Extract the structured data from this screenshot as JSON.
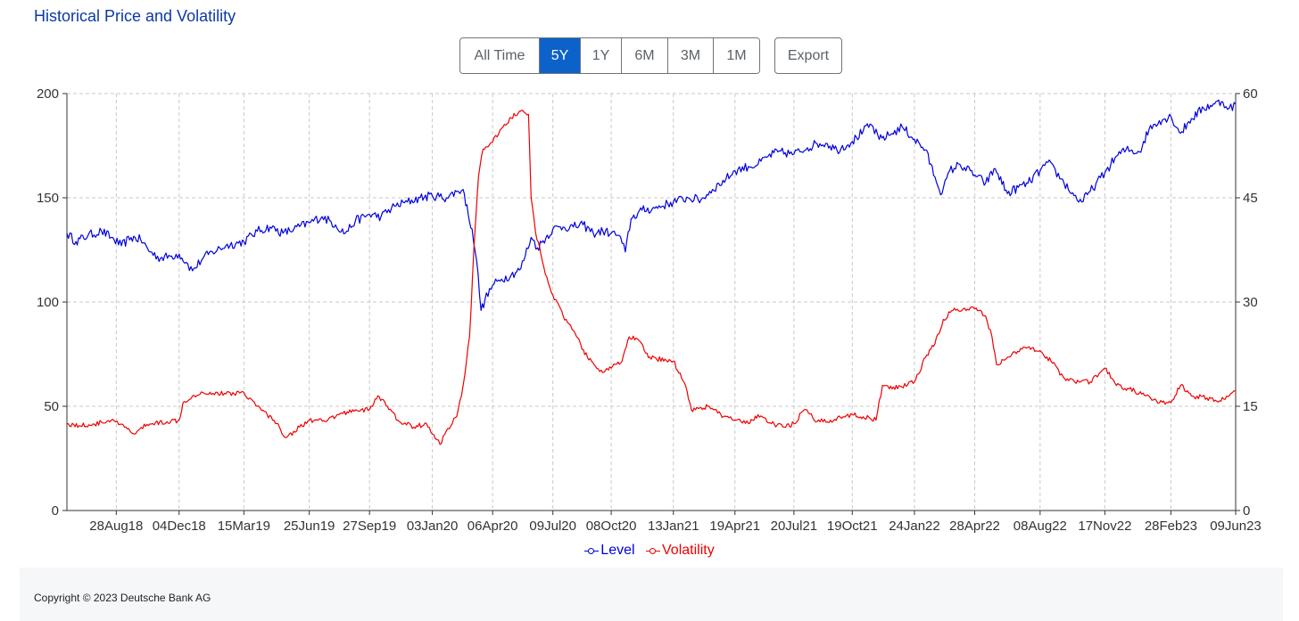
{
  "title": "Historical Price and Volatility",
  "range_buttons": [
    "All Time",
    "5Y",
    "1Y",
    "6M",
    "3M",
    "1M"
  ],
  "range_selected": "5Y",
  "export_label": "Export",
  "footer": {
    "copyright": "Copyright © 2023 Deutsche Bank AG"
  },
  "legend": [
    {
      "label": "Level",
      "color": "#0000dd"
    },
    {
      "label": "Volatility",
      "color": "#ee0000"
    }
  ],
  "chart_data": {
    "type": "line",
    "x_tick_labels": [
      "28Aug18",
      "04Dec18",
      "15Mar19",
      "25Jun19",
      "27Sep19",
      "03Jan20",
      "06Apr20",
      "09Jul20",
      "08Oct20",
      "13Jan21",
      "19Apr21",
      "20Jul21",
      "19Oct21",
      "24Jan22",
      "28Apr22",
      "08Aug22",
      "17Nov22",
      "28Feb23",
      "09Jun23"
    ],
    "x_range": [
      "2018-06-12",
      "2023-06-09"
    ],
    "y_left": {
      "ticks": [
        0,
        50,
        100,
        150,
        200
      ],
      "range": [
        0,
        200
      ]
    },
    "y_right": {
      "ticks": [
        0,
        15,
        30,
        45,
        60
      ],
      "range": [
        0,
        60
      ]
    },
    "grid": true,
    "series": [
      {
        "name": "Level",
        "axis": "left",
        "color": "#0000dd",
        "points": [
          [
            "2018-06-12",
            133
          ],
          [
            "2018-06-26",
            129
          ],
          [
            "2018-07-15",
            132
          ],
          [
            "2018-08-05",
            134
          ],
          [
            "2018-08-20",
            131
          ],
          [
            "2018-09-05",
            127
          ],
          [
            "2018-09-20",
            131
          ],
          [
            "2018-10-05",
            130
          ],
          [
            "2018-10-20",
            124
          ],
          [
            "2018-11-05",
            121
          ],
          [
            "2018-11-20",
            122
          ],
          [
            "2018-12-04",
            123
          ],
          [
            "2018-12-15",
            119
          ],
          [
            "2018-12-25",
            115
          ],
          [
            "2019-01-10",
            121
          ],
          [
            "2019-01-25",
            124
          ],
          [
            "2019-02-15",
            127
          ],
          [
            "2019-03-15",
            129
          ],
          [
            "2019-04-05",
            134
          ],
          [
            "2019-04-25",
            136
          ],
          [
            "2019-05-15",
            133
          ],
          [
            "2019-06-01",
            135
          ],
          [
            "2019-06-25",
            138
          ],
          [
            "2019-07-15",
            141
          ],
          [
            "2019-08-05",
            137
          ],
          [
            "2019-08-20",
            133
          ],
          [
            "2019-09-05",
            139
          ],
          [
            "2019-09-27",
            142
          ],
          [
            "2019-10-15",
            141
          ],
          [
            "2019-11-05",
            146
          ],
          [
            "2019-11-25",
            148
          ],
          [
            "2019-12-15",
            150
          ],
          [
            "2020-01-03",
            151
          ],
          [
            "2020-01-25",
            150
          ],
          [
            "2020-02-10",
            153
          ],
          [
            "2020-02-20",
            154
          ],
          [
            "2020-02-28",
            142
          ],
          [
            "2020-03-05",
            135
          ],
          [
            "2020-03-12",
            120
          ],
          [
            "2020-03-19",
            96
          ],
          [
            "2020-03-25",
            101
          ],
          [
            "2020-04-06",
            108
          ],
          [
            "2020-04-20",
            111
          ],
          [
            "2020-05-05",
            113
          ],
          [
            "2020-05-20",
            116
          ],
          [
            "2020-06-05",
            131
          ],
          [
            "2020-06-15",
            126
          ],
          [
            "2020-07-09",
            135
          ],
          [
            "2020-07-25",
            136
          ],
          [
            "2020-08-10",
            136
          ],
          [
            "2020-08-25",
            137
          ],
          [
            "2020-09-10",
            133
          ],
          [
            "2020-09-25",
            134
          ],
          [
            "2020-10-08",
            133
          ],
          [
            "2020-10-20",
            132
          ],
          [
            "2020-10-30",
            124
          ],
          [
            "2020-11-08",
            140
          ],
          [
            "2020-11-25",
            144
          ],
          [
            "2020-12-15",
            145
          ],
          [
            "2021-01-13",
            148
          ],
          [
            "2021-02-05",
            150
          ],
          [
            "2021-02-25",
            149
          ],
          [
            "2021-03-15",
            154
          ],
          [
            "2021-04-05",
            159
          ],
          [
            "2021-04-19",
            163
          ],
          [
            "2021-05-10",
            165
          ],
          [
            "2021-05-25",
            166
          ],
          [
            "2021-06-10",
            170
          ],
          [
            "2021-06-25",
            172
          ],
          [
            "2021-07-20",
            171
          ],
          [
            "2021-08-10",
            174
          ],
          [
            "2021-08-25",
            176
          ],
          [
            "2021-09-10",
            176
          ],
          [
            "2021-09-25",
            173
          ],
          [
            "2021-10-19",
            177
          ],
          [
            "2021-11-05",
            182
          ],
          [
            "2021-11-18",
            185
          ],
          [
            "2021-11-30",
            178
          ],
          [
            "2021-12-15",
            180
          ],
          [
            "2022-01-05",
            184
          ],
          [
            "2022-01-24",
            178
          ],
          [
            "2022-02-10",
            173
          ],
          [
            "2022-02-25",
            160
          ],
          [
            "2022-03-08",
            152
          ],
          [
            "2022-03-20",
            163
          ],
          [
            "2022-04-05",
            166
          ],
          [
            "2022-04-28",
            161
          ],
          [
            "2022-05-15",
            157
          ],
          [
            "2022-05-30",
            164
          ],
          [
            "2022-06-18",
            152
          ],
          [
            "2022-07-05",
            155
          ],
          [
            "2022-07-20",
            157
          ],
          [
            "2022-08-08",
            163
          ],
          [
            "2022-08-20",
            167
          ],
          [
            "2022-09-10",
            159
          ],
          [
            "2022-09-30",
            151
          ],
          [
            "2022-10-12",
            148
          ],
          [
            "2022-10-25",
            153
          ],
          [
            "2022-11-17",
            162
          ],
          [
            "2022-12-05",
            170
          ],
          [
            "2022-12-20",
            173
          ],
          [
            "2023-01-10",
            172
          ],
          [
            "2023-01-25",
            183
          ],
          [
            "2023-02-10",
            187
          ],
          [
            "2023-02-28",
            189
          ],
          [
            "2023-03-15",
            181
          ],
          [
            "2023-04-01",
            188
          ],
          [
            "2023-04-20",
            193
          ],
          [
            "2023-05-05",
            195
          ],
          [
            "2023-05-20",
            196
          ],
          [
            "2023-05-30",
            193
          ],
          [
            "2023-06-09",
            195
          ]
        ]
      },
      {
        "name": "Volatility",
        "axis": "right",
        "color": "#ee0000",
        "points": [
          [
            "2018-06-12",
            12.5
          ],
          [
            "2018-07-01",
            12.2
          ],
          [
            "2018-07-25",
            12.4
          ],
          [
            "2018-08-20",
            13.0
          ],
          [
            "2018-09-10",
            12.0
          ],
          [
            "2018-09-25",
            11.0
          ],
          [
            "2018-10-15",
            12.4
          ],
          [
            "2018-11-15",
            12.8
          ],
          [
            "2018-12-04",
            13.0
          ],
          [
            "2018-12-10",
            15.5
          ],
          [
            "2018-12-25",
            16.5
          ],
          [
            "2019-01-10",
            17.0
          ],
          [
            "2019-02-15",
            16.8
          ],
          [
            "2019-03-15",
            17.0
          ],
          [
            "2019-04-05",
            15.0
          ],
          [
            "2019-05-01",
            13.0
          ],
          [
            "2019-05-20",
            10.5
          ],
          [
            "2019-06-10",
            12.0
          ],
          [
            "2019-06-25",
            13.0
          ],
          [
            "2019-07-20",
            12.8
          ],
          [
            "2019-08-10",
            13.8
          ],
          [
            "2019-09-05",
            14.5
          ],
          [
            "2019-09-27",
            14.5
          ],
          [
            "2019-10-10",
            16.5
          ],
          [
            "2019-10-25",
            15.0
          ],
          [
            "2019-11-10",
            13.0
          ],
          [
            "2019-12-05",
            12.0
          ],
          [
            "2019-12-25",
            12.5
          ],
          [
            "2020-01-03",
            11.0
          ],
          [
            "2020-01-15",
            9.5
          ],
          [
            "2020-01-25",
            11.5
          ],
          [
            "2020-02-10",
            13.5
          ],
          [
            "2020-02-20",
            18.0
          ],
          [
            "2020-03-01",
            25.0
          ],
          [
            "2020-03-08",
            38.0
          ],
          [
            "2020-03-15",
            48.0
          ],
          [
            "2020-03-22",
            52.0
          ],
          [
            "2020-04-06",
            53.0
          ],
          [
            "2020-04-20",
            55.0
          ],
          [
            "2020-05-05",
            56.5
          ],
          [
            "2020-05-20",
            57.5
          ],
          [
            "2020-06-01",
            57.0
          ],
          [
            "2020-06-05",
            45.0
          ],
          [
            "2020-06-12",
            40.0
          ],
          [
            "2020-06-25",
            35.0
          ],
          [
            "2020-07-09",
            31.0
          ],
          [
            "2020-07-25",
            28.0
          ],
          [
            "2020-08-15",
            25.0
          ],
          [
            "2020-09-01",
            22.0
          ],
          [
            "2020-09-20",
            20.0
          ],
          [
            "2020-10-08",
            20.5
          ],
          [
            "2020-10-25",
            21.5
          ],
          [
            "2020-11-05",
            25.0
          ],
          [
            "2020-11-20",
            24.5
          ],
          [
            "2020-12-05",
            22.0
          ],
          [
            "2021-01-13",
            21.5
          ],
          [
            "2021-02-01",
            18.0
          ],
          [
            "2021-02-10",
            14.5
          ],
          [
            "2021-03-10",
            15.0
          ],
          [
            "2021-04-01",
            13.5
          ],
          [
            "2021-04-19",
            13.0
          ],
          [
            "2021-05-10",
            12.5
          ],
          [
            "2021-05-25",
            13.8
          ],
          [
            "2021-06-15",
            12.5
          ],
          [
            "2021-07-05",
            12.0
          ],
          [
            "2021-07-20",
            12.5
          ],
          [
            "2021-08-05",
            14.5
          ],
          [
            "2021-08-25",
            12.8
          ],
          [
            "2021-09-15",
            13.0
          ],
          [
            "2021-10-05",
            13.5
          ],
          [
            "2021-10-19",
            13.8
          ],
          [
            "2021-11-05",
            13.5
          ],
          [
            "2021-11-25",
            13.0
          ],
          [
            "2021-12-05",
            18.0
          ],
          [
            "2021-12-20",
            17.5
          ],
          [
            "2022-01-24",
            18.5
          ],
          [
            "2022-02-10",
            22.0
          ],
          [
            "2022-02-25",
            24.0
          ],
          [
            "2022-03-10",
            27.5
          ],
          [
            "2022-03-25",
            28.8
          ],
          [
            "2022-04-28",
            29.0
          ],
          [
            "2022-05-15",
            28.0
          ],
          [
            "2022-05-25",
            25.0
          ],
          [
            "2022-06-01",
            21.0
          ],
          [
            "2022-06-25",
            22.5
          ],
          [
            "2022-07-20",
            23.5
          ],
          [
            "2022-08-08",
            23.0
          ],
          [
            "2022-08-25",
            21.5
          ],
          [
            "2022-09-15",
            19.0
          ],
          [
            "2022-10-10",
            18.5
          ],
          [
            "2022-10-25",
            18.5
          ],
          [
            "2022-11-17",
            20.5
          ],
          [
            "2022-12-05",
            18.0
          ],
          [
            "2022-12-25",
            17.5
          ],
          [
            "2023-01-20",
            16.5
          ],
          [
            "2023-02-10",
            15.5
          ],
          [
            "2023-02-28",
            15.5
          ],
          [
            "2023-03-15",
            18.0
          ],
          [
            "2023-04-01",
            16.5
          ],
          [
            "2023-04-25",
            16.2
          ],
          [
            "2023-05-15",
            15.8
          ],
          [
            "2023-05-30",
            16.5
          ],
          [
            "2023-06-09",
            17.2
          ]
        ]
      }
    ]
  }
}
